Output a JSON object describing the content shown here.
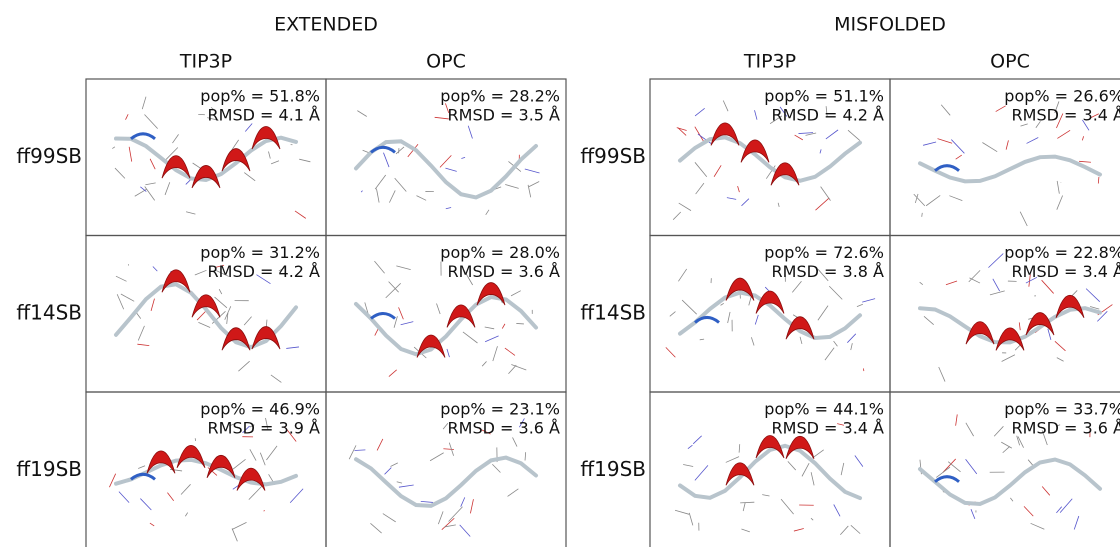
{
  "groups": [
    {
      "title": "EXTENDED",
      "columns": [
        "TIP3P",
        "OPC"
      ],
      "rows": [
        {
          "label": "ff99SB",
          "cells": [
            {
              "pop": "pop% = 51.8%",
              "rmsd": "RMSD = 4.1 Å"
            },
            {
              "pop": "pop% = 28.2%",
              "rmsd": "RMSD = 3.5 Å"
            }
          ]
        },
        {
          "label": "ff14SB",
          "cells": [
            {
              "pop": "pop% = 31.2%",
              "rmsd": "RMSD = 4.2 Å"
            },
            {
              "pop": "pop% = 28.0%",
              "rmsd": "RMSD = 3.6 Å"
            }
          ]
        },
        {
          "label": "ff19SB",
          "cells": [
            {
              "pop": "pop% = 46.9%",
              "rmsd": "RMSD = 3.9 Å"
            },
            {
              "pop": "pop% = 23.1%",
              "rmsd": "RMSD = 3.6 Å"
            }
          ]
        }
      ]
    },
    {
      "title": "MISFOLDED",
      "columns": [
        "TIP3P",
        "OPC"
      ],
      "rows": [
        {
          "label": "ff99SB",
          "cells": [
            {
              "pop": "pop% = 51.1%",
              "rmsd": "RMSD = 4.2 Å"
            },
            {
              "pop": "pop% = 26.6%",
              "rmsd": "RMSD = 3.4 Å"
            }
          ]
        },
        {
          "label": "ff14SB",
          "cells": [
            {
              "pop": "pop% = 72.6%",
              "rmsd": "RMSD = 3.8 Å"
            },
            {
              "pop": "pop% = 22.8%",
              "rmsd": "RMSD = 3.4 Å"
            }
          ]
        },
        {
          "label": "ff19SB",
          "cells": [
            {
              "pop": "pop% = 44.1%",
              "rmsd": "RMSD = 3.4 Å"
            },
            {
              "pop": "pop% = 33.7%",
              "rmsd": "RMSD = 3.6 Å"
            }
          ]
        }
      ]
    }
  ]
}
